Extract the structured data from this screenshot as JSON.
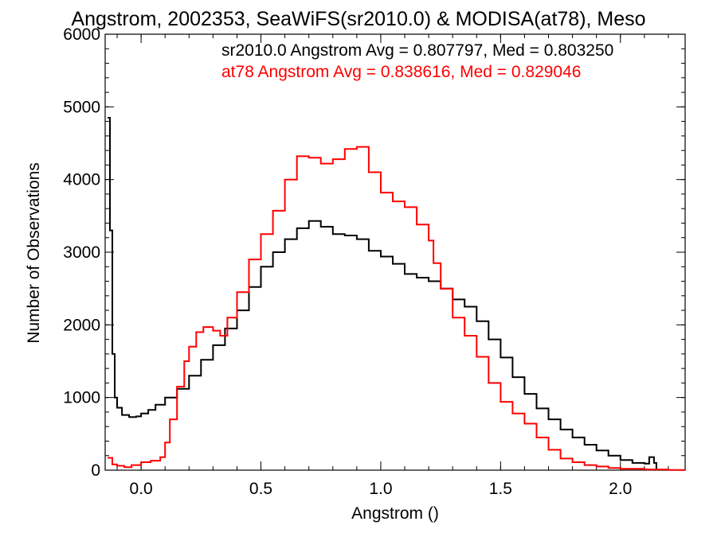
{
  "chart_data": {
    "type": "line",
    "title": "Angstrom, 2002353, SeaWiFS(sr2010.0) & MODISA(at78), Meso",
    "xlabel": "Angstrom ()",
    "ylabel": "Number of Observations",
    "xlim": [
      -0.15,
      2.27
    ],
    "ylim": [
      0,
      6000
    ],
    "x_ticks": [
      0.0,
      0.5,
      1.0,
      1.5,
      2.0
    ],
    "x_tick_labels": [
      "0.0",
      "0.5",
      "1.0",
      "1.5",
      "2.0"
    ],
    "y_ticks": [
      0,
      1000,
      2000,
      3000,
      4000,
      5000,
      6000
    ],
    "y_tick_labels": [
      "0",
      "1000",
      "2000",
      "3000",
      "4000",
      "5000",
      "6000"
    ],
    "grid": false,
    "line_style": "histogram-step",
    "annotations": [
      {
        "text": "sr2010.0 Angstrom Avg = 0.807797, Med = 0.803250",
        "color": "#000000"
      },
      {
        "text": "at78 Angstrom Avg = 0.838616, Med = 0.829046",
        "color": "#ff0000"
      }
    ],
    "series": [
      {
        "color": "#000000",
        "points": [
          [
            -0.14,
            4850
          ],
          [
            -0.13,
            3300
          ],
          [
            -0.12,
            1600
          ],
          [
            -0.11,
            1000
          ],
          [
            -0.1,
            860
          ],
          [
            -0.08,
            760
          ],
          [
            -0.05,
            730
          ],
          [
            -0.02,
            740
          ],
          [
            0.0,
            780
          ],
          [
            0.03,
            830
          ],
          [
            0.06,
            900
          ],
          [
            0.1,
            1000
          ],
          [
            0.15,
            1120
          ],
          [
            0.2,
            1300
          ],
          [
            0.25,
            1520
          ],
          [
            0.3,
            1720
          ],
          [
            0.35,
            1950
          ],
          [
            0.4,
            2200
          ],
          [
            0.45,
            2520
          ],
          [
            0.5,
            2800
          ],
          [
            0.55,
            3000
          ],
          [
            0.6,
            3180
          ],
          [
            0.65,
            3330
          ],
          [
            0.7,
            3430
          ],
          [
            0.75,
            3350
          ],
          [
            0.8,
            3250
          ],
          [
            0.85,
            3230
          ],
          [
            0.9,
            3180
          ],
          [
            0.95,
            3020
          ],
          [
            1.0,
            2940
          ],
          [
            1.05,
            2840
          ],
          [
            1.1,
            2700
          ],
          [
            1.15,
            2650
          ],
          [
            1.2,
            2600
          ],
          [
            1.25,
            2500
          ],
          [
            1.3,
            2350
          ],
          [
            1.35,
            2250
          ],
          [
            1.4,
            2050
          ],
          [
            1.45,
            1800
          ],
          [
            1.5,
            1550
          ],
          [
            1.55,
            1280
          ],
          [
            1.6,
            1050
          ],
          [
            1.65,
            850
          ],
          [
            1.7,
            700
          ],
          [
            1.75,
            560
          ],
          [
            1.8,
            450
          ],
          [
            1.85,
            350
          ],
          [
            1.9,
            270
          ],
          [
            1.95,
            200
          ],
          [
            2.0,
            140
          ],
          [
            2.05,
            100
          ],
          [
            2.1,
            90
          ],
          [
            2.12,
            180
          ],
          [
            2.14,
            100
          ],
          [
            2.15,
            0
          ]
        ]
      },
      {
        "color": "#ff0000",
        "points": [
          [
            -0.14,
            170
          ],
          [
            -0.12,
            80
          ],
          [
            -0.1,
            60
          ],
          [
            -0.07,
            40
          ],
          [
            -0.04,
            70
          ],
          [
            0.0,
            110
          ],
          [
            0.04,
            130
          ],
          [
            0.08,
            180
          ],
          [
            0.1,
            380
          ],
          [
            0.12,
            700
          ],
          [
            0.15,
            1150
          ],
          [
            0.18,
            1500
          ],
          [
            0.2,
            1700
          ],
          [
            0.23,
            1900
          ],
          [
            0.26,
            1970
          ],
          [
            0.3,
            1920
          ],
          [
            0.33,
            1850
          ],
          [
            0.36,
            2100
          ],
          [
            0.4,
            2450
          ],
          [
            0.45,
            2900
          ],
          [
            0.5,
            3250
          ],
          [
            0.55,
            3570
          ],
          [
            0.6,
            4000
          ],
          [
            0.65,
            4320
          ],
          [
            0.7,
            4300
          ],
          [
            0.75,
            4220
          ],
          [
            0.8,
            4280
          ],
          [
            0.85,
            4420
          ],
          [
            0.9,
            4450
          ],
          [
            0.95,
            4100
          ],
          [
            1.0,
            3820
          ],
          [
            1.05,
            3700
          ],
          [
            1.1,
            3620
          ],
          [
            1.15,
            3380
          ],
          [
            1.2,
            3160
          ],
          [
            1.22,
            2850
          ],
          [
            1.25,
            2500
          ],
          [
            1.3,
            2100
          ],
          [
            1.35,
            1850
          ],
          [
            1.4,
            1560
          ],
          [
            1.45,
            1200
          ],
          [
            1.5,
            940
          ],
          [
            1.55,
            780
          ],
          [
            1.6,
            640
          ],
          [
            1.65,
            450
          ],
          [
            1.7,
            280
          ],
          [
            1.75,
            160
          ],
          [
            1.8,
            110
          ],
          [
            1.85,
            70
          ],
          [
            1.9,
            50
          ],
          [
            1.95,
            30
          ],
          [
            2.0,
            20
          ],
          [
            2.1,
            10
          ],
          [
            2.2,
            3
          ],
          [
            2.27,
            0
          ]
        ]
      }
    ]
  }
}
